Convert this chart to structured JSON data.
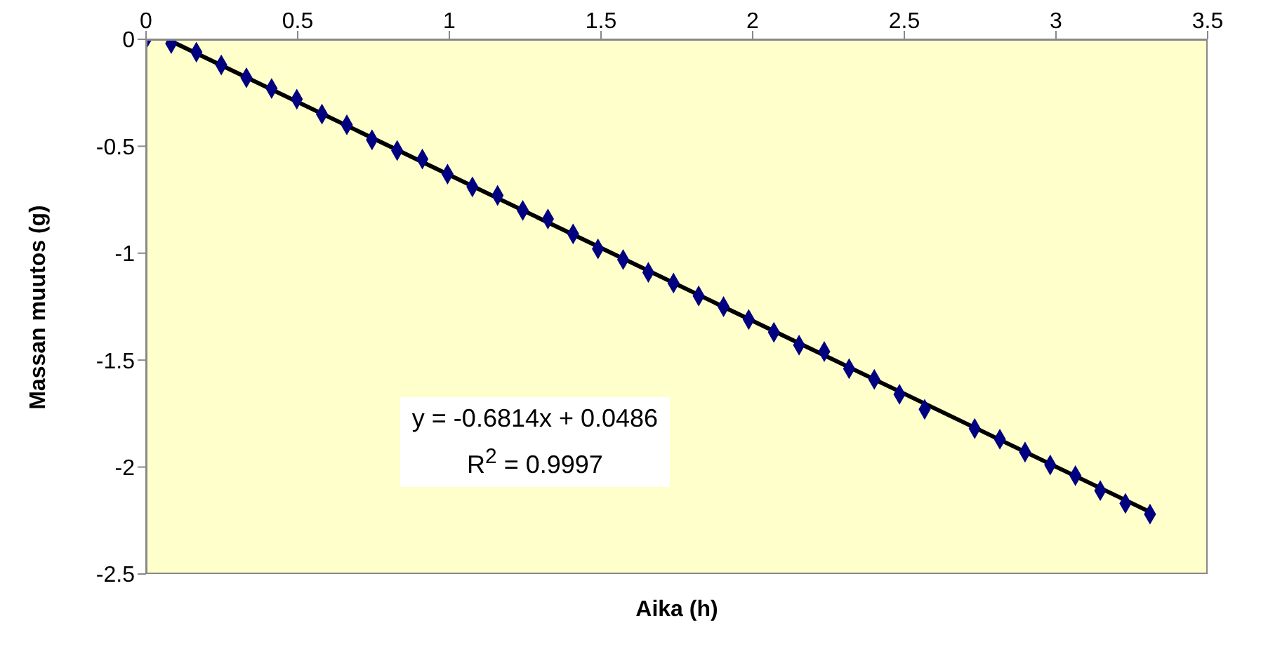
{
  "chart_data": {
    "type": "scatter",
    "xlabel": "Aika (h)",
    "ylabel": "Massan muutos (g)",
    "annotations": [
      "y = -0.6814x + 0.0486",
      "R$^{2}$ = 0.9997"
    ],
    "xlim": [
      0,
      3.5
    ],
    "xticks": [
      0,
      0.5,
      1,
      1.5,
      2,
      2.5,
      3,
      3.5
    ],
    "ylim": [
      -2.5,
      0
    ],
    "yticks": [
      0,
      -0.5,
      -1,
      -1.5,
      -2,
      -2.5
    ],
    "grid": false,
    "series": [
      {
        "type": "scatter",
        "color": "#000080",
        "marker": "diamond",
        "x": [
          0,
          0.083,
          0.166,
          0.248,
          0.331,
          0.414,
          0.497,
          0.58,
          0.662,
          0.745,
          0.828,
          0.911,
          0.994,
          1.076,
          1.159,
          1.242,
          1.325,
          1.408,
          1.49,
          1.573,
          1.656,
          1.739,
          1.822,
          1.904,
          1.987,
          2.07,
          2.153,
          2.236,
          2.318,
          2.401,
          2.484,
          2.567,
          2.732,
          2.815,
          2.898,
          2.981,
          3.064,
          3.146,
          3.229,
          3.31
        ],
        "values": [
          0,
          -0.02,
          -0.06,
          -0.12,
          -0.18,
          -0.23,
          -0.28,
          -0.35,
          -0.4,
          -0.47,
          -0.52,
          -0.56,
          -0.63,
          -0.69,
          -0.73,
          -0.8,
          -0.84,
          -0.91,
          -0.98,
          -1.03,
          -1.09,
          -1.14,
          -1.2,
          -1.25,
          -1.31,
          -1.37,
          -1.43,
          -1.46,
          -1.54,
          -1.59,
          -1.66,
          -1.73,
          -1.82,
          -1.87,
          -1.93,
          -1.99,
          -2.04,
          -2.11,
          -2.17,
          -2.22
        ]
      },
      {
        "type": "line",
        "color": "#000000",
        "marker": "none",
        "x": [
          0.07,
          3.31
        ],
        "values": [
          0,
          -2.21
        ]
      }
    ]
  }
}
